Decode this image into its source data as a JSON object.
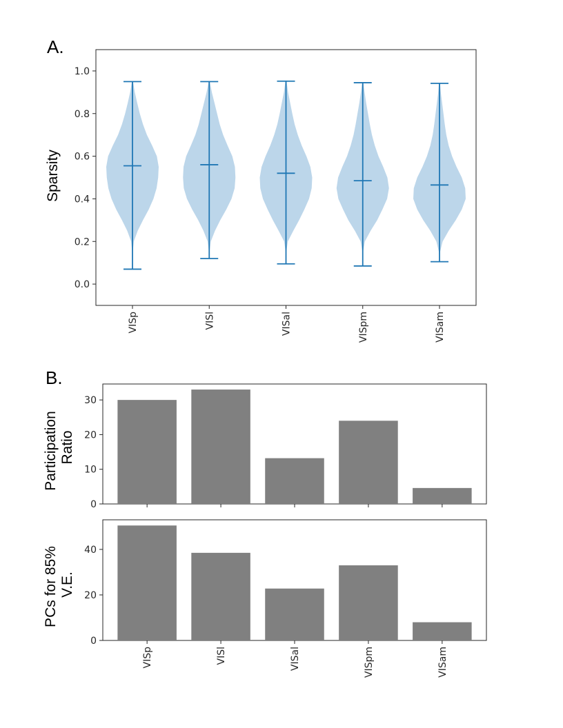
{
  "panel_labels": {
    "a": "A.",
    "b": "B."
  },
  "chart_data": [
    {
      "type": "violin",
      "panel": "A.",
      "ylabel": "Sparsity",
      "xlabel": "",
      "categories": [
        "VISp",
        "VISl",
        "VISal",
        "VISpm",
        "VISam"
      ],
      "ylim": [
        -0.1,
        1.1
      ],
      "yticks": [
        0.0,
        0.2,
        0.4,
        0.6,
        0.8,
        1.0
      ],
      "ytick_labels": [
        "0.0",
        "0.2",
        "0.4",
        "0.6",
        "0.8",
        "1.0"
      ],
      "min": [
        0.07,
        0.12,
        0.095,
        0.085,
        0.105
      ],
      "median": [
        0.555,
        0.56,
        0.52,
        0.485,
        0.465
      ],
      "max": [
        0.95,
        0.95,
        0.952,
        0.945,
        0.942
      ],
      "density_profile": {
        "y": [
          0.07,
          0.15,
          0.2,
          0.25,
          0.3,
          0.35,
          0.4,
          0.45,
          0.5,
          0.55,
          0.6,
          0.65,
          0.7,
          0.75,
          0.8,
          0.85,
          0.9,
          0.95
        ],
        "half_width": [
          [
            0.0,
            0.01,
            0.05,
            0.2,
            0.4,
            0.62,
            0.8,
            0.92,
            0.98,
            1.0,
            0.93,
            0.75,
            0.55,
            0.4,
            0.28,
            0.18,
            0.09,
            0.02
          ],
          [
            0.0,
            0.01,
            0.06,
            0.22,
            0.42,
            0.65,
            0.85,
            0.97,
            1.0,
            0.98,
            0.88,
            0.7,
            0.53,
            0.4,
            0.3,
            0.2,
            0.1,
            0.02
          ],
          [
            0.0,
            0.01,
            0.07,
            0.28,
            0.5,
            0.7,
            0.88,
            0.98,
            1.0,
            0.93,
            0.78,
            0.6,
            0.45,
            0.33,
            0.24,
            0.16,
            0.08,
            0.02
          ],
          [
            0.0,
            0.01,
            0.08,
            0.3,
            0.55,
            0.75,
            0.93,
            1.0,
            0.94,
            0.78,
            0.6,
            0.46,
            0.35,
            0.27,
            0.2,
            0.13,
            0.07,
            0.02
          ],
          [
            0.0,
            0.02,
            0.12,
            0.35,
            0.62,
            0.85,
            1.0,
            0.98,
            0.85,
            0.65,
            0.48,
            0.35,
            0.26,
            0.2,
            0.15,
            0.1,
            0.05,
            0.02
          ]
        ]
      },
      "colors": {
        "line": "#1f77b4",
        "body": "#bcd6ea"
      },
      "grid": false
    },
    {
      "type": "bar",
      "panel": "B.",
      "ylabel_lines": [
        "Participation",
        "Ratio"
      ],
      "categories": [
        "VISp",
        "VISl",
        "VISal",
        "VISpm",
        "VISam"
      ],
      "values": [
        30.0,
        33.0,
        13.2,
        24.0,
        4.6
      ],
      "ylim": [
        0,
        34.6
      ],
      "yticks": [
        0,
        10,
        20,
        30
      ],
      "ytick_labels": [
        "0",
        "10",
        "20",
        "30"
      ],
      "colors": {
        "bar": "#808080"
      },
      "grid": false
    },
    {
      "type": "bar",
      "panel": "B.",
      "ylabel_lines": [
        "PCs for 85%",
        "V.E."
      ],
      "categories": [
        "VISp",
        "VISl",
        "VISal",
        "VISpm",
        "VISam"
      ],
      "values": [
        50.5,
        38.5,
        22.8,
        33.0,
        8.0
      ],
      "ylim": [
        0,
        53
      ],
      "yticks": [
        0,
        20,
        40
      ],
      "ytick_labels": [
        "0",
        "20",
        "40"
      ],
      "xtick_labels": [
        "VISp",
        "VISl",
        "VISal",
        "VISpm",
        "VISam"
      ],
      "colors": {
        "bar": "#808080"
      },
      "grid": false
    }
  ]
}
